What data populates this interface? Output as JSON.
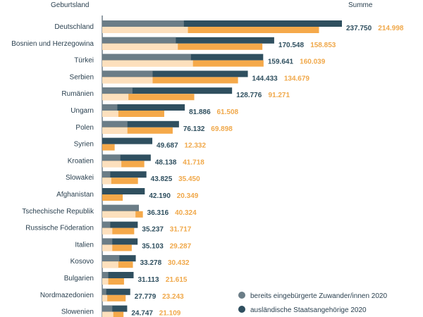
{
  "chart_data": {
    "type": "bar",
    "header_left": "Geburtsland",
    "header_right": "Summe",
    "categories": [
      "Deutschland",
      "Bosnien und Herzegowina",
      "Türkei",
      "Serbien",
      "Rumänien",
      "Ungarn",
      "Polen",
      "Syrien",
      "Kroatien",
      "Slowakei",
      "Afghanistan",
      "Tschechische Republik",
      "Russische Föderation",
      "Italien",
      "Kosovo",
      "Bulgarien",
      "Nordmazedonien",
      "Slowenien"
    ],
    "totals_2020": [
      237750,
      170548,
      159641,
      144433,
      128776,
      81886,
      76132,
      49687,
      48138,
      43825,
      42190,
      36316,
      35237,
      35103,
      33278,
      31113,
      27779,
      24747
    ],
    "totals_2020_labels": [
      "237.750",
      "170.548",
      "159.641",
      "144.433",
      "128.776",
      "81.886",
      "76.132",
      "49.687",
      "48.138",
      "43.825",
      "42.190",
      "36.316",
      "35.237",
      "35.103",
      "33.278",
      "31.113",
      "27.779",
      "24.747"
    ],
    "naturalized_2020": [
      81000,
      73000,
      88000,
      50000,
      30000,
      15000,
      25000,
      0,
      18000,
      8000,
      0,
      38000,
      8000,
      10000,
      17000,
      6000,
      4000,
      10000
    ],
    "totals_other": [
      214998,
      158853,
      160039,
      134679,
      91271,
      61508,
      69898,
      12332,
      41718,
      35450,
      20349,
      40324,
      31717,
      29287,
      30432,
      21615,
      23243,
      21109
    ],
    "totals_other_labels": [
      "214.998",
      "158.853",
      "160.039",
      "134.679",
      "91.271",
      "61.508",
      "69.898",
      "12.332",
      "41.718",
      "35.450",
      "20.349",
      "40.324",
      "31.717",
      "29.287",
      "30.432",
      "21.615",
      "23.243",
      "21.109"
    ],
    "naturalized_other": [
      85000,
      75000,
      90000,
      50000,
      26000,
      16000,
      25000,
      0,
      19000,
      9000,
      0,
      33000,
      10000,
      10000,
      16000,
      6000,
      5000,
      11000
    ],
    "legend": [
      {
        "label": "bereits eingebürgerte Zuwander/innen 2020",
        "color": "#6b7d87"
      },
      {
        "label": "ausländische Staatsangehörige 2020",
        "color": "#2f4f5f"
      }
    ],
    "colors": {
      "dark": "#2f4f5f",
      "dark_naturalized": "#6b7d87",
      "orange": "#f5a94a",
      "orange_naturalized": "#fde0bd",
      "label_dark": "#2f4f5f",
      "label_orange": "#f0a84a"
    },
    "x_max": 240000
  }
}
